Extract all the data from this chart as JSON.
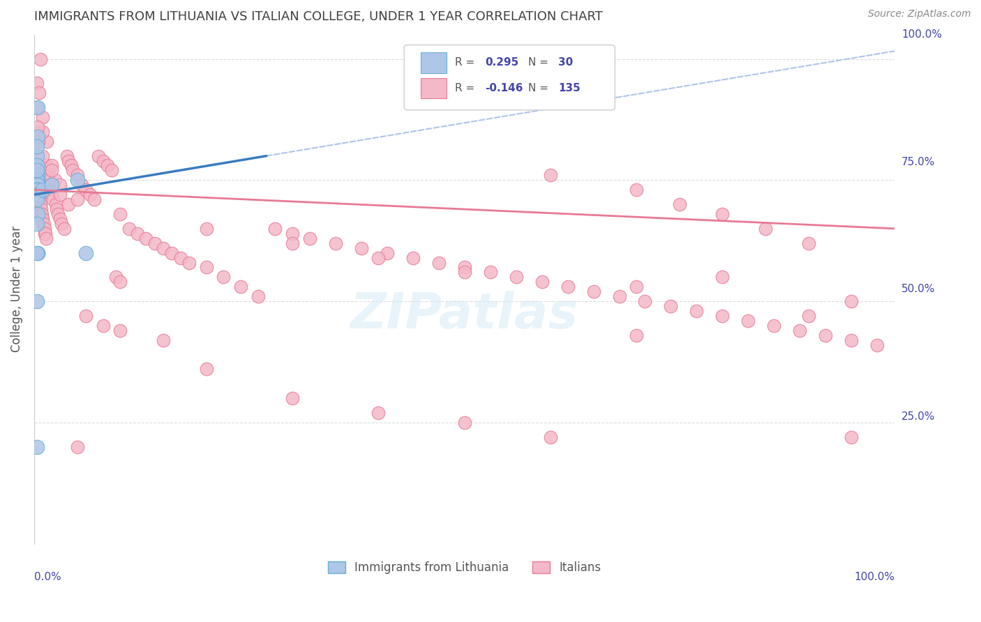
{
  "title": "IMMIGRANTS FROM LITHUANIA VS ITALIAN COLLEGE, UNDER 1 YEAR CORRELATION CHART",
  "source": "Source: ZipAtlas.com",
  "ylabel": "College, Under 1 year",
  "legend1": "Immigrants from Lithuania",
  "legend2": "Italians",
  "blue_color": "#aec6e8",
  "blue_edge": "#6aaed6",
  "blue_line": "#3a7dbf",
  "blue_line_dash": "#aec6e8",
  "pink_color": "#f4b8c8",
  "pink_edge": "#e87a96",
  "pink_line": "#e87a96",
  "background_color": "#ffffff",
  "grid_color": "#dddddd",
  "title_color": "#404040",
  "axis_color": "#4444aa",
  "x_range": [
    0.0,
    1.0
  ],
  "y_range": [
    0.0,
    1.05
  ],
  "blue_r": "0.295",
  "blue_n": "30",
  "pink_r": "-0.146",
  "pink_n": "135",
  "blue_scatter_x": [
    0.004,
    0.003,
    0.003,
    0.004,
    0.003,
    0.004,
    0.003,
    0.003,
    0.004,
    0.004,
    0.003,
    0.003,
    0.004,
    0.004,
    0.003,
    0.004,
    0.003,
    0.004,
    0.01,
    0.02,
    0.05,
    0.06,
    0.003,
    0.003,
    0.004,
    0.003,
    0.003,
    0.004,
    0.003,
    0.003
  ],
  "blue_scatter_y": [
    0.84,
    0.8,
    0.78,
    0.76,
    0.76,
    0.76,
    0.75,
    0.75,
    0.74,
    0.74,
    0.73,
    0.73,
    0.73,
    0.72,
    0.72,
    0.72,
    0.71,
    0.6,
    0.73,
    0.74,
    0.75,
    0.6,
    0.82,
    0.77,
    0.9,
    0.6,
    0.2,
    0.68,
    0.66,
    0.5
  ],
  "pink_scatter_x": [
    0.002,
    0.003,
    0.003,
    0.004,
    0.004,
    0.005,
    0.005,
    0.006,
    0.006,
    0.007,
    0.007,
    0.008,
    0.008,
    0.009,
    0.009,
    0.01,
    0.01,
    0.011,
    0.012,
    0.012,
    0.013,
    0.014,
    0.015,
    0.016,
    0.017,
    0.018,
    0.019,
    0.02,
    0.022,
    0.024,
    0.025,
    0.026,
    0.028,
    0.03,
    0.032,
    0.035,
    0.038,
    0.04,
    0.043,
    0.045,
    0.05,
    0.055,
    0.06,
    0.065,
    0.07,
    0.075,
    0.08,
    0.085,
    0.09,
    0.095,
    0.1,
    0.11,
    0.12,
    0.13,
    0.14,
    0.15,
    0.16,
    0.17,
    0.18,
    0.2,
    0.22,
    0.24,
    0.26,
    0.28,
    0.3,
    0.32,
    0.35,
    0.38,
    0.41,
    0.44,
    0.47,
    0.5,
    0.53,
    0.56,
    0.59,
    0.62,
    0.65,
    0.68,
    0.71,
    0.74,
    0.77,
    0.8,
    0.83,
    0.86,
    0.89,
    0.92,
    0.95,
    0.98,
    0.003,
    0.004,
    0.005,
    0.006,
    0.007,
    0.01,
    0.015,
    0.02,
    0.03,
    0.04,
    0.06,
    0.08,
    0.1,
    0.15,
    0.2,
    0.3,
    0.4,
    0.5,
    0.6,
    0.7,
    0.8,
    0.9,
    0.95,
    0.003,
    0.005,
    0.01,
    0.05,
    0.6,
    0.7,
    0.75,
    0.8,
    0.85,
    0.9,
    0.003,
    0.004,
    0.005,
    0.01,
    0.02,
    0.03,
    0.05,
    0.1,
    0.2,
    0.3,
    0.4,
    0.5,
    0.7,
    0.95
  ],
  "pink_scatter_y": [
    0.78,
    0.76,
    0.75,
    0.74,
    0.73,
    0.73,
    0.72,
    0.72,
    0.71,
    0.7,
    0.7,
    0.69,
    0.68,
    0.68,
    0.67,
    0.67,
    0.66,
    0.66,
    0.65,
    0.64,
    0.64,
    0.63,
    0.78,
    0.76,
    0.75,
    0.74,
    0.73,
    0.72,
    0.71,
    0.75,
    0.7,
    0.69,
    0.68,
    0.67,
    0.66,
    0.65,
    0.8,
    0.79,
    0.78,
    0.77,
    0.76,
    0.74,
    0.73,
    0.72,
    0.71,
    0.8,
    0.79,
    0.78,
    0.77,
    0.55,
    0.54,
    0.65,
    0.64,
    0.63,
    0.62,
    0.61,
    0.6,
    0.59,
    0.58,
    0.57,
    0.55,
    0.53,
    0.51,
    0.65,
    0.64,
    0.63,
    0.62,
    0.61,
    0.6,
    0.59,
    0.58,
    0.57,
    0.56,
    0.55,
    0.54,
    0.53,
    0.52,
    0.51,
    0.5,
    0.49,
    0.48,
    0.47,
    0.46,
    0.45,
    0.44,
    0.43,
    0.42,
    0.41,
    0.95,
    0.85,
    0.75,
    0.93,
    1.0,
    0.88,
    0.83,
    0.78,
    0.72,
    0.7,
    0.47,
    0.45,
    0.44,
    0.42,
    0.36,
    0.3,
    0.27,
    0.25,
    0.22,
    0.43,
    0.55,
    0.47,
    0.22,
    0.8,
    0.6,
    0.85,
    0.2,
    0.76,
    0.73,
    0.7,
    0.68,
    0.65,
    0.62,
    0.9,
    0.86,
    0.83,
    0.8,
    0.77,
    0.74,
    0.71,
    0.68,
    0.65,
    0.62,
    0.59,
    0.56,
    0.53,
    0.5
  ]
}
